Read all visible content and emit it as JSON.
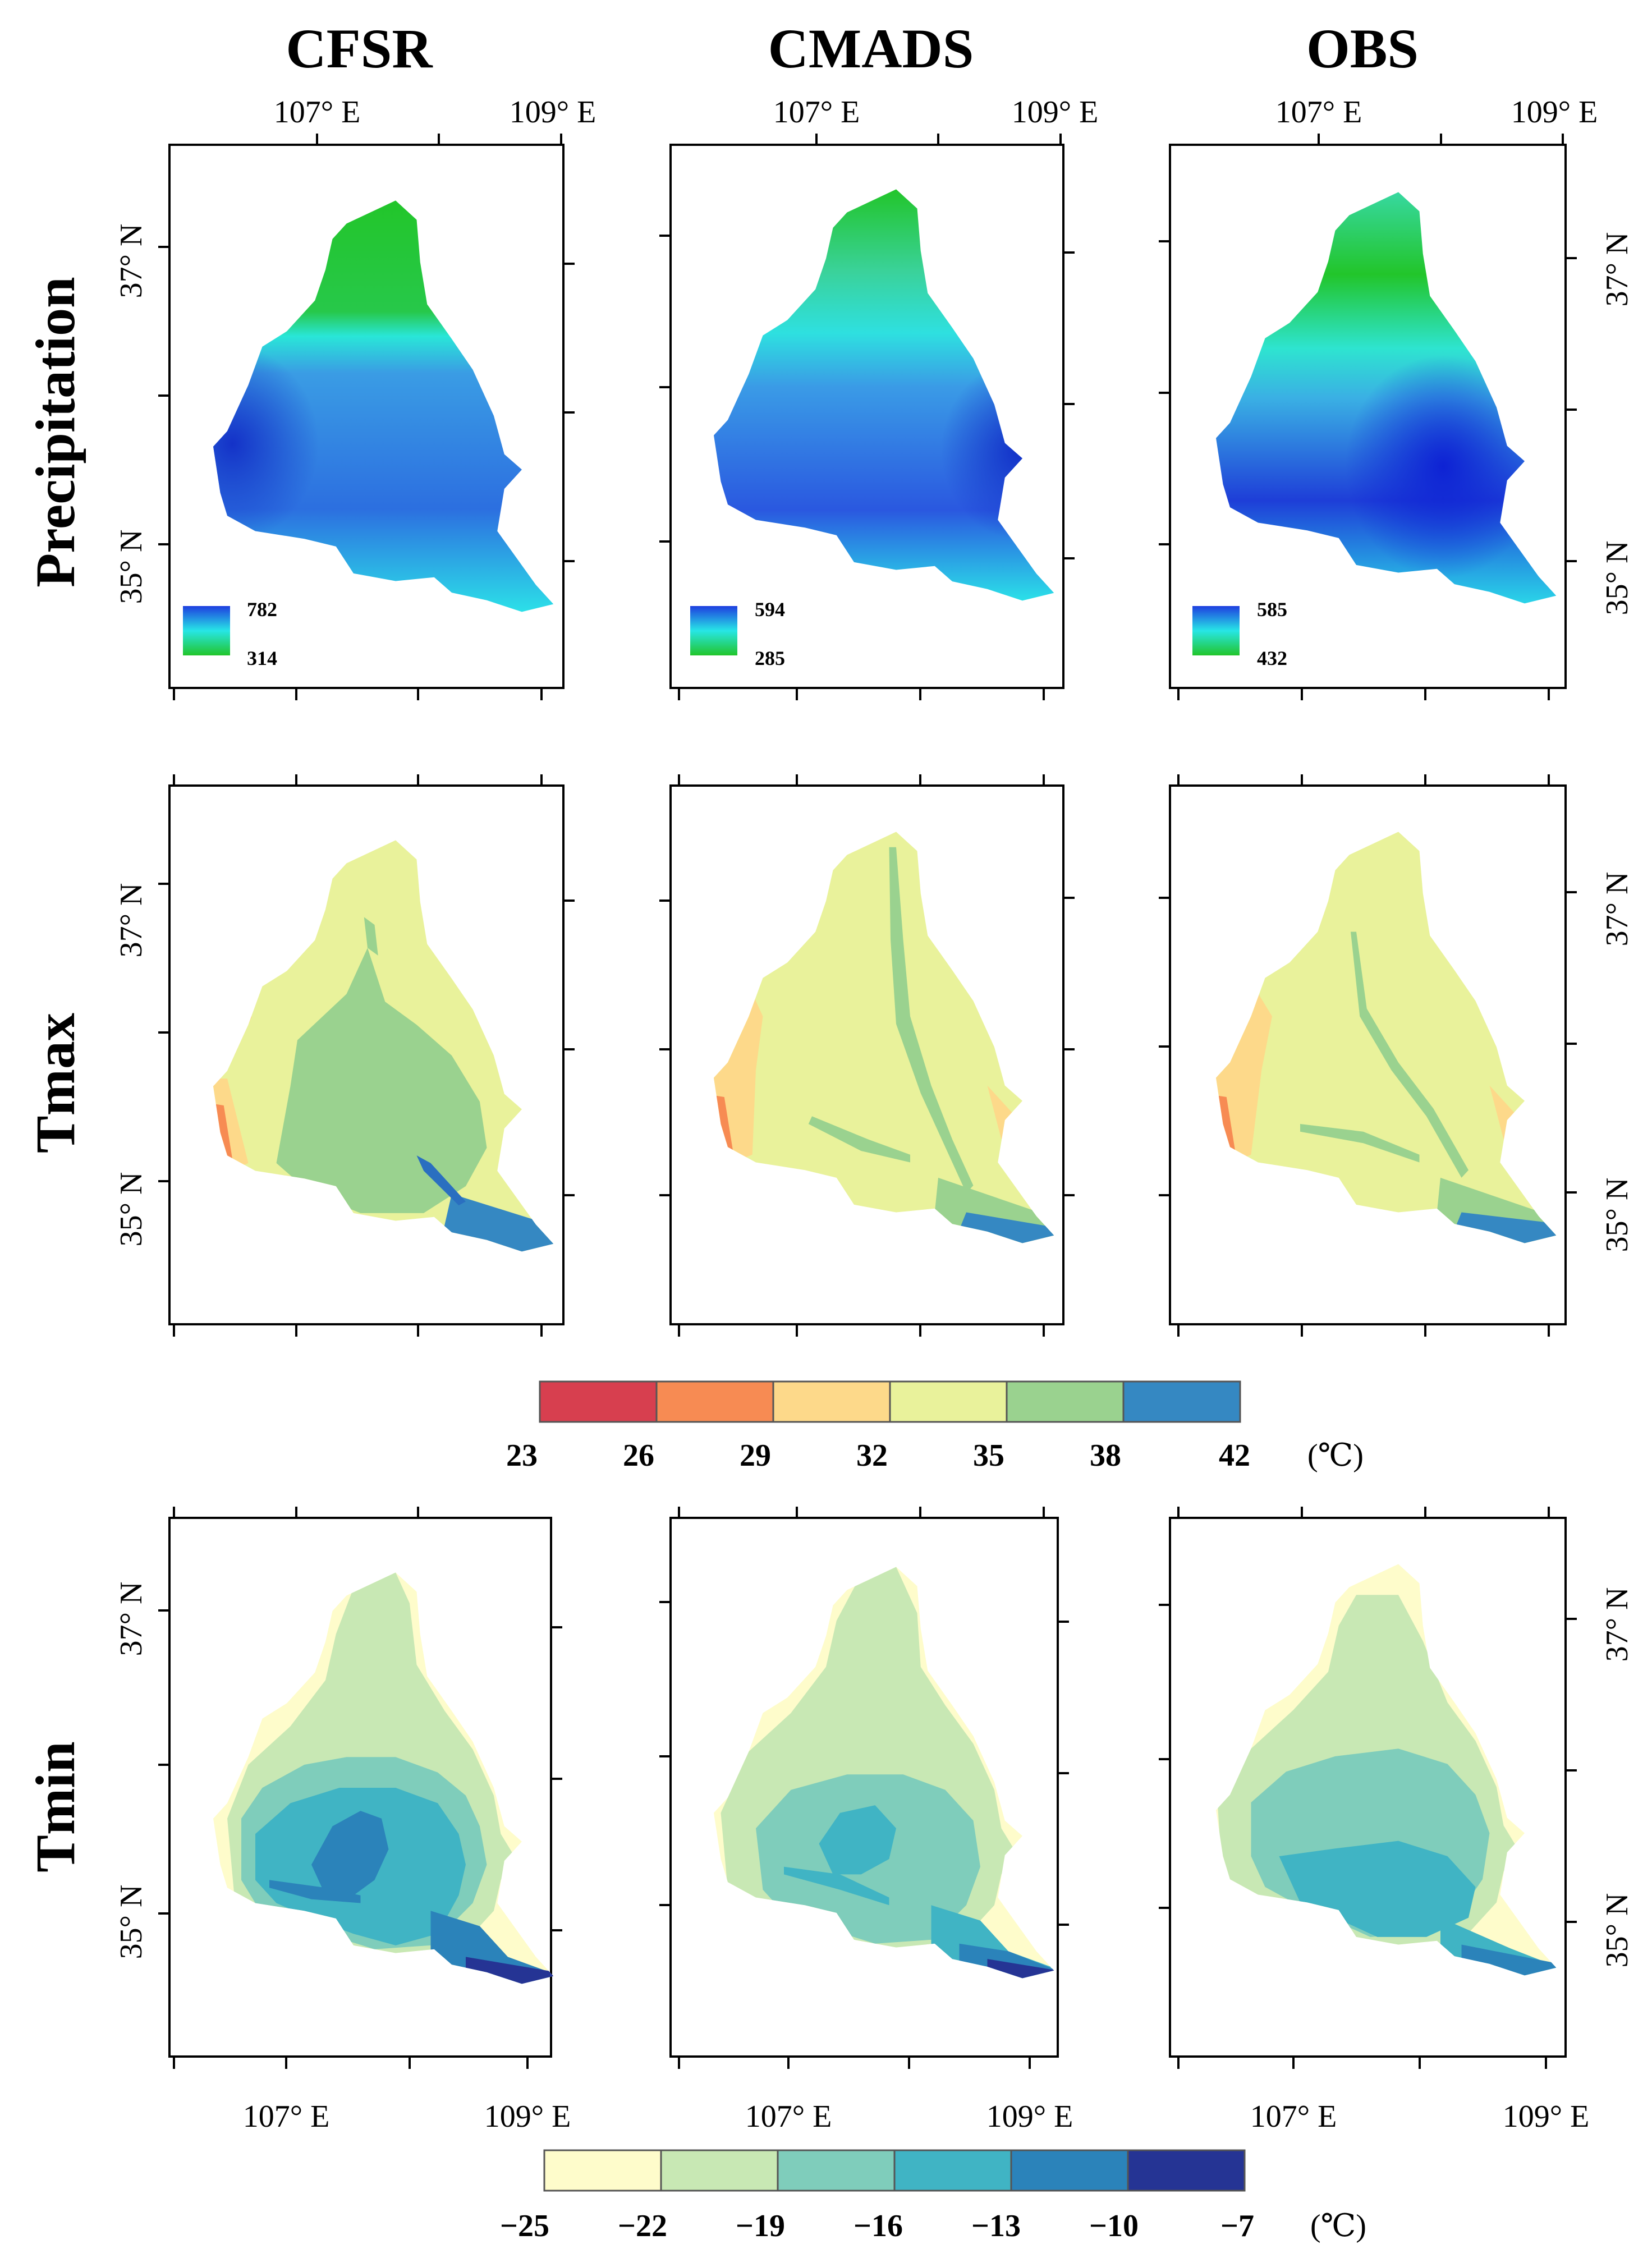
{
  "columns": [
    "CFSR",
    "CMADS",
    "OBS"
  ],
  "rows": [
    "Precipitation",
    "Tmax",
    "Tmin"
  ],
  "lon_labels": [
    "107° E",
    "109° E"
  ],
  "lat_labels": [
    "37° N",
    "35° N"
  ],
  "precip_legends": [
    {
      "max": "782",
      "min": "314"
    },
    {
      "max": "594",
      "min": "285"
    },
    {
      "max": "585",
      "min": "432"
    }
  ],
  "tmax_colorbar": {
    "ticks": [
      "23",
      "26",
      "29",
      "32",
      "35",
      "38",
      "42"
    ],
    "unit": "(℃)",
    "colors": [
      "#d73f4f",
      "#f78b53",
      "#fdd98a",
      "#e9f29b",
      "#9ad28f",
      "#3588c2"
    ]
  },
  "tmin_colorbar": {
    "ticks": [
      "−25",
      "−22",
      "−19",
      "−16",
      "−13",
      "−10",
      "−7"
    ],
    "unit": "(℃)",
    "colors": [
      "#fefccb",
      "#c8e8b4",
      "#7fcdbb",
      "#40b4c4",
      "#2b83ba",
      "#253494"
    ]
  },
  "colors": {
    "precip_wet": "#1e4ee0",
    "precip_mid": "#27e6e6",
    "precip_dry": "#22c52a"
  }
}
